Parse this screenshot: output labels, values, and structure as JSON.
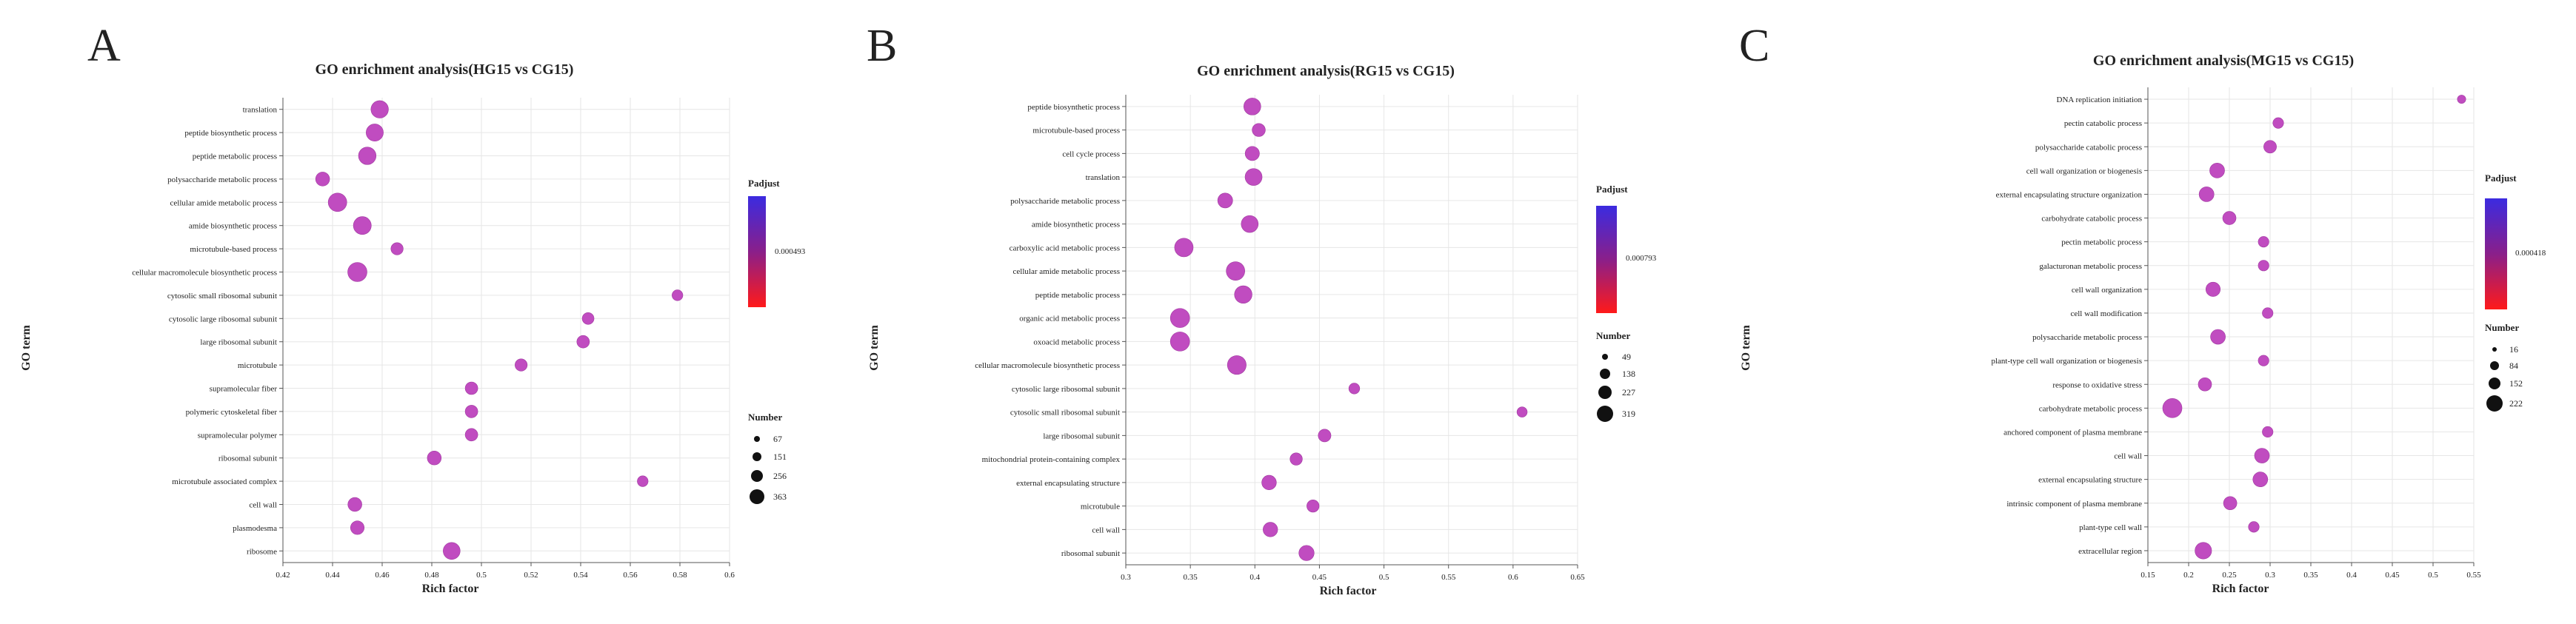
{
  "panels": [
    {
      "letter": "A",
      "title": "GO enrichment analysis(HG15 vs CG15)",
      "xlabel": "Rich factor",
      "ylabel": "GO term",
      "xticks": [
        "0.42",
        "0.44",
        "0.46",
        "0.48",
        "0.5",
        "0.52",
        "0.54",
        "0.56",
        "0.58",
        "0.6"
      ],
      "xlim": [
        0.42,
        0.6
      ],
      "legend": {
        "padj_title": "Padjust",
        "padj_value": "0.000493",
        "number_title": "Number",
        "number_labels": [
          "67",
          "151",
          "256",
          "363"
        ],
        "number_values": [
          67,
          151,
          256,
          363
        ]
      }
    },
    {
      "letter": "B",
      "title": "GO enrichment analysis(RG15 vs CG15)",
      "xlabel": "Rich factor",
      "ylabel": "GO term",
      "xticks": [
        "0.3",
        "0.35",
        "0.4",
        "0.45",
        "0.5",
        "0.55",
        "0.6",
        "0.65"
      ],
      "xlim": [
        0.3,
        0.65
      ],
      "legend": {
        "padj_title": "Padjust",
        "padj_value": "0.000793",
        "number_title": "Number",
        "number_labels": [
          "49",
          "138",
          "227",
          "319"
        ],
        "number_values": [
          49,
          138,
          227,
          319
        ]
      }
    },
    {
      "letter": "C",
      "title": "GO enrichment analysis(MG15 vs CG15)",
      "xlabel": "Rich factor",
      "ylabel": "GO term",
      "xticks": [
        "0.15",
        "0.2",
        "0.25",
        "0.3",
        "0.35",
        "0.4",
        "0.45",
        "0.5",
        "0.55"
      ],
      "xlim": [
        0.15,
        0.55
      ],
      "legend": {
        "padj_title": "Padjust",
        "padj_value": "0.000418",
        "number_title": "Number",
        "number_labels": [
          "16",
          "84",
          "152",
          "222"
        ],
        "number_values": [
          16,
          84,
          152,
          222
        ]
      }
    }
  ],
  "colors": {
    "bubble": "#c04cc0",
    "bubble_stroke": "#a03aa0",
    "grad_top": "#3b2be0",
    "grad_mid": "#8a1f8a",
    "grad_bottom": "#ff1a1a",
    "grid": "#e6e6e6",
    "axis": "#555555"
  },
  "chart_data": [
    {
      "type": "scatter",
      "title": "GO enrichment analysis(HG15 vs CG15)",
      "xlabel": "Rich factor",
      "ylabel": "GO term",
      "xlim": [
        0.42,
        0.6
      ],
      "points": [
        {
          "term": "translation",
          "x": 0.459,
          "n": 280
        },
        {
          "term": "peptide biosynthetic process",
          "x": 0.457,
          "n": 270
        },
        {
          "term": "peptide metabolic process",
          "x": 0.454,
          "n": 285
        },
        {
          "term": "polysaccharide metabolic process",
          "x": 0.436,
          "n": 150
        },
        {
          "term": "cellular amide metabolic process",
          "x": 0.442,
          "n": 330
        },
        {
          "term": "amide biosynthetic process",
          "x": 0.452,
          "n": 300
        },
        {
          "term": "microtubule-based process",
          "x": 0.466,
          "n": 100
        },
        {
          "term": "cellular macromolecule biosynthetic process",
          "x": 0.45,
          "n": 363
        },
        {
          "term": "cytosolic small ribosomal subunit",
          "x": 0.579,
          "n": 67
        },
        {
          "term": "cytosolic large ribosomal subunit",
          "x": 0.543,
          "n": 90
        },
        {
          "term": "large ribosomal subunit",
          "x": 0.541,
          "n": 110
        },
        {
          "term": "microtubule",
          "x": 0.516,
          "n": 100
        },
        {
          "term": "supramolecular fiber",
          "x": 0.496,
          "n": 110
        },
        {
          "term": "polymeric cytoskeletal fiber",
          "x": 0.496,
          "n": 110
        },
        {
          "term": "supramolecular polymer",
          "x": 0.496,
          "n": 110
        },
        {
          "term": "ribosomal subunit",
          "x": 0.481,
          "n": 150
        },
        {
          "term": "microtubule associated complex",
          "x": 0.565,
          "n": 67
        },
        {
          "term": "cell wall",
          "x": 0.449,
          "n": 150
        },
        {
          "term": "plasmodesma",
          "x": 0.45,
          "n": 140
        },
        {
          "term": "ribosome",
          "x": 0.488,
          "n": 260
        }
      ]
    },
    {
      "type": "scatter",
      "title": "GO enrichment analysis(RG15 vs CG15)",
      "xlabel": "Rich factor",
      "ylabel": "GO term",
      "xlim": [
        0.3,
        0.65
      ],
      "points": [
        {
          "term": "peptide biosynthetic process",
          "x": 0.398,
          "n": 230
        },
        {
          "term": "microtubule-based process",
          "x": 0.403,
          "n": 110
        },
        {
          "term": "cell cycle process",
          "x": 0.398,
          "n": 140
        },
        {
          "term": "translation",
          "x": 0.399,
          "n": 230
        },
        {
          "term": "polysaccharide metabolic process",
          "x": 0.377,
          "n": 160
        },
        {
          "term": "amide biosynthetic process",
          "x": 0.396,
          "n": 230
        },
        {
          "term": "carboxylic acid metabolic process",
          "x": 0.345,
          "n": 290
        },
        {
          "term": "cellular amide metabolic process",
          "x": 0.385,
          "n": 290
        },
        {
          "term": "peptide metabolic process",
          "x": 0.391,
          "n": 250
        },
        {
          "term": "organic acid metabolic process",
          "x": 0.342,
          "n": 319
        },
        {
          "term": "oxoacid metabolic process",
          "x": 0.342,
          "n": 319
        },
        {
          "term": "cellular macromolecule biosynthetic process",
          "x": 0.386,
          "n": 300
        },
        {
          "term": "cytosolic large ribosomal subunit",
          "x": 0.477,
          "n": 60
        },
        {
          "term": "cytosolic small ribosomal subunit",
          "x": 0.607,
          "n": 49
        },
        {
          "term": "large ribosomal subunit",
          "x": 0.454,
          "n": 100
        },
        {
          "term": "mitochondrial protein-containing complex",
          "x": 0.432,
          "n": 90
        },
        {
          "term": "external encapsulating structure",
          "x": 0.411,
          "n": 150
        },
        {
          "term": "microtubule",
          "x": 0.445,
          "n": 90
        },
        {
          "term": "cell wall",
          "x": 0.412,
          "n": 150
        },
        {
          "term": "ribosomal subunit",
          "x": 0.44,
          "n": 170
        }
      ]
    },
    {
      "type": "scatter",
      "title": "GO enrichment analysis(MG15 vs CG15)",
      "xlabel": "Rich factor",
      "ylabel": "GO term",
      "xlim": [
        0.15,
        0.55
      ],
      "points": [
        {
          "term": "DNA replication initiation",
          "x": 0.535,
          "n": 16
        },
        {
          "term": "pectin catabolic process",
          "x": 0.31,
          "n": 40
        },
        {
          "term": "polysaccharide catabolic process",
          "x": 0.3,
          "n": 70
        },
        {
          "term": "cell wall organization or biogenesis",
          "x": 0.235,
          "n": 110
        },
        {
          "term": "external encapsulating structure organization",
          "x": 0.222,
          "n": 110
        },
        {
          "term": "carbohydrate catabolic process",
          "x": 0.25,
          "n": 80
        },
        {
          "term": "pectin metabolic process",
          "x": 0.292,
          "n": 40
        },
        {
          "term": "galacturonan metabolic process",
          "x": 0.292,
          "n": 40
        },
        {
          "term": "cell wall organization",
          "x": 0.23,
          "n": 100
        },
        {
          "term": "cell wall modification",
          "x": 0.297,
          "n": 40
        },
        {
          "term": "polysaccharide metabolic process",
          "x": 0.236,
          "n": 110
        },
        {
          "term": "plant-type cell wall organization or biogenesis",
          "x": 0.292,
          "n": 40
        },
        {
          "term": "response to oxidative stress",
          "x": 0.22,
          "n": 80
        },
        {
          "term": "carbohydrate metabolic process",
          "x": 0.18,
          "n": 222
        },
        {
          "term": "anchored component of plasma membrane",
          "x": 0.297,
          "n": 40
        },
        {
          "term": "cell wall",
          "x": 0.29,
          "n": 110
        },
        {
          "term": "external encapsulating structure",
          "x": 0.288,
          "n": 110
        },
        {
          "term": "intrinsic component of plasma membrane",
          "x": 0.251,
          "n": 80
        },
        {
          "term": "plant-type cell wall",
          "x": 0.28,
          "n": 40
        },
        {
          "term": "extracellular region",
          "x": 0.218,
          "n": 150
        }
      ]
    }
  ]
}
